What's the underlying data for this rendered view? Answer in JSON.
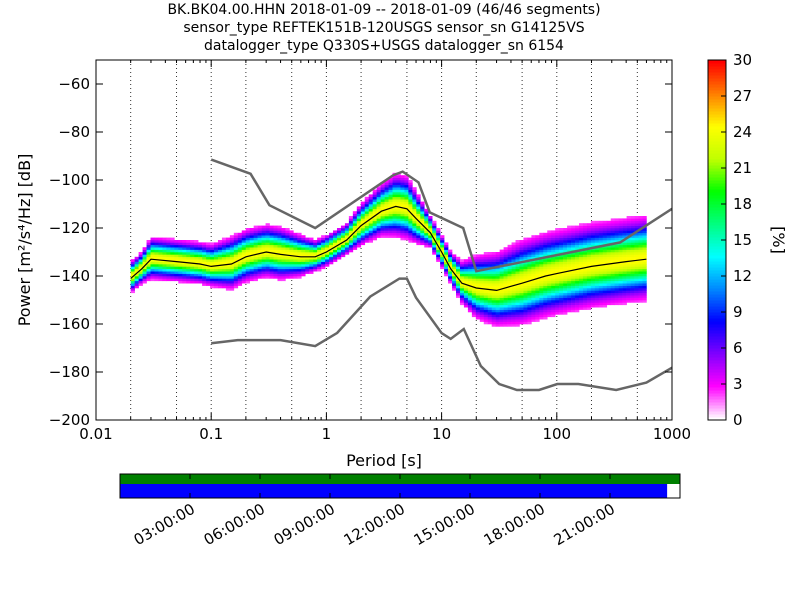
{
  "chart_data": {
    "type": "heatmap",
    "title_lines": [
      "BK.BK04.00.HHN   2018-01-09 -- 2018-01-09  (46/46 segments)",
      "sensor_type REFTEK151B-120USGS sensor_sn G14125VS",
      "datalogger_type Q330S+USGS datalogger_sn 6154"
    ],
    "xlabel": "Period [s]",
    "ylabel": "Power [m²/s⁴/Hz] [dB]",
    "x_scale": "log",
    "xlim": [
      0.01,
      1000
    ],
    "ylim": [
      -200,
      -50
    ],
    "x_ticks": [
      {
        "value": 0.01,
        "label": "0.01"
      },
      {
        "value": 0.1,
        "label": "0.1"
      },
      {
        "value": 1,
        "label": "1"
      },
      {
        "value": 10,
        "label": "10"
      },
      {
        "value": 100,
        "label": "100"
      },
      {
        "value": 1000,
        "label": "1000"
      }
    ],
    "y_ticks": [
      {
        "value": -60,
        "label": "−60"
      },
      {
        "value": -80,
        "label": "−80"
      },
      {
        "value": -100,
        "label": "−100"
      },
      {
        "value": -120,
        "label": "−120"
      },
      {
        "value": -140,
        "label": "−140"
      },
      {
        "value": -160,
        "label": "−160"
      },
      {
        "value": -180,
        "label": "−180"
      },
      {
        "value": -200,
        "label": "−200"
      }
    ],
    "grid": "dotted vertical lines at 1-2-5 period decades",
    "colorbar": {
      "label": "[%]",
      "min": 0,
      "max": 30,
      "ticks": [
        "0",
        "3",
        "6",
        "9",
        "12",
        "15",
        "18",
        "21",
        "24",
        "27",
        "30"
      ],
      "colormap": [
        "#ffffff",
        "#ff00ff",
        "#8000ff",
        "#0000ff",
        "#0088ff",
        "#00ffff",
        "#00ff80",
        "#00ff00",
        "#c0ff00",
        "#ffff00",
        "#ff8000",
        "#ff0000"
      ]
    },
    "noise_models": {
      "color": "#666666",
      "high": {
        "periods": [
          0.1,
          0.22,
          0.32,
          0.8,
          3.8,
          4.6,
          6.3,
          7.9,
          15.4,
          20,
          354.8,
          1000
        ],
        "power": [
          -91.5,
          -97.4,
          -110.5,
          -120,
          -98,
          -96.5,
          -101,
          -113.5,
          -120,
          -138,
          -126,
          -112
        ]
      },
      "low": {
        "periods": [
          0.1,
          0.17,
          0.4,
          0.8,
          1.24,
          2.4,
          4.3,
          5,
          6,
          10,
          12,
          15.6,
          21.9,
          31.6,
          45,
          70,
          101,
          154,
          328,
          600,
          1000
        ],
        "power": [
          -168,
          -166.7,
          -166.7,
          -169.2,
          -163.7,
          -148.6,
          -141.1,
          -141.1,
          -149,
          -163.8,
          -166.2,
          -162.1,
          -177.5,
          -185,
          -187.5,
          -187.5,
          -185,
          -185,
          -187.5,
          -184.4,
          -178.2
        ]
      }
    },
    "mode_curve": {
      "color": "#000000",
      "periods": [
        0.02,
        0.025,
        0.03,
        0.05,
        0.08,
        0.1,
        0.15,
        0.2,
        0.3,
        0.4,
        0.6,
        0.8,
        1,
        1.5,
        2,
        3,
        4,
        5,
        6,
        8,
        10,
        12,
        15,
        20,
        30,
        50,
        80,
        100,
        200,
        400,
        600
      ],
      "power": [
        -141,
        -137,
        -133,
        -134,
        -135,
        -136,
        -135,
        -132,
        -130,
        -131,
        -132,
        -132,
        -130,
        -125,
        -119,
        -113,
        -111,
        -112,
        -116,
        -122,
        -130,
        -137,
        -143,
        -145,
        -146,
        -143,
        -140,
        -139,
        -136,
        -134,
        -133
      ]
    },
    "psd_density": {
      "periods": [
        0.02,
        0.025,
        0.03,
        0.05,
        0.08,
        0.1,
        0.15,
        0.2,
        0.3,
        0.4,
        0.6,
        0.8,
        1,
        1.5,
        2,
        3,
        4,
        5,
        6,
        8,
        10,
        12,
        15,
        20,
        30,
        50,
        80,
        100,
        200,
        400,
        600
      ],
      "center_db": [
        -141,
        -137,
        -133,
        -134,
        -135,
        -136,
        -135,
        -132,
        -130,
        -131,
        -132,
        -132,
        -130,
        -125,
        -119,
        -113,
        -111,
        -112,
        -116,
        -122,
        -130,
        -137,
        -143,
        -145,
        -146,
        -143,
        -140,
        -139,
        -136,
        -134,
        -133
      ],
      "spread_db": [
        3,
        3,
        4,
        4,
        4,
        4,
        5,
        5,
        5,
        5,
        4,
        3,
        3,
        3,
        4,
        5,
        6,
        6,
        5,
        3,
        3,
        3,
        4,
        6,
        7,
        8,
        8,
        8,
        8,
        8,
        8
      ]
    }
  },
  "timeline": {
    "tick_labels": [
      "03:00:00",
      "06:00:00",
      "09:00:00",
      "12:00:00",
      "15:00:00",
      "18:00:00",
      "21:00:00"
    ],
    "data_color": "#008000",
    "psd_color": "#0000ff",
    "coverage_fraction": 0.977
  }
}
